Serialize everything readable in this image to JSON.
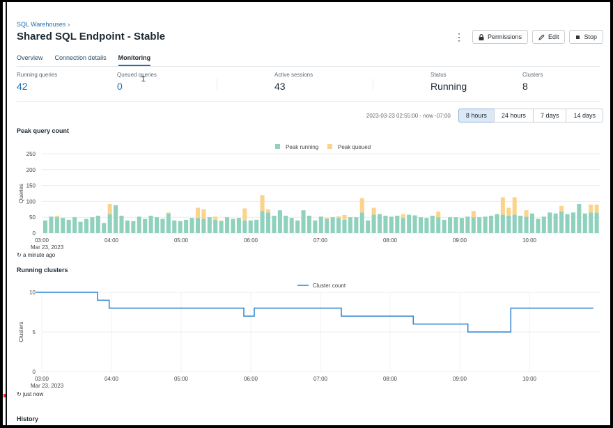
{
  "breadcrumb": {
    "label": "SQL Warehouses"
  },
  "header": {
    "title": "Shared SQL Endpoint - Stable",
    "permissions_label": "Permissions",
    "edit_label": "Edit",
    "stop_label": "Stop"
  },
  "tabs": [
    {
      "label": "Overview"
    },
    {
      "label": "Connection details"
    },
    {
      "label": "Monitoring"
    }
  ],
  "metrics": [
    {
      "label": "Running queries",
      "value": "42"
    },
    {
      "label": "Queued queries",
      "value": "0"
    },
    {
      "label": "Active sessions",
      "value": "43"
    },
    {
      "label": "Status",
      "value": "Running"
    },
    {
      "label": "Clusters",
      "value": "8"
    }
  ],
  "time_range": {
    "range_text": "2023-03-23 02:55:00 - now -07:00",
    "options": [
      "8 hours",
      "24 hours",
      "7 days",
      "14 days"
    ],
    "selected": "8 hours"
  },
  "colors": {
    "accent": "#1f6fb0",
    "peak_running": "#8fd1bd",
    "peak_queued": "#fad48c",
    "cluster_line": "#2b83d0"
  },
  "chart_data": [
    {
      "type": "bar",
      "stacked": true,
      "title": "Peak query count",
      "ylabel": "Queries",
      "ylim": [
        0,
        250
      ],
      "yticks": [
        0,
        50,
        100,
        150,
        200,
        250
      ],
      "xticks": [
        "03:00",
        "04:00",
        "05:00",
        "06:00",
        "07:00",
        "08:00",
        "09:00",
        "10:00"
      ],
      "xsublabel": "Mar 23, 2023",
      "legend": "top-center",
      "series": [
        {
          "name": "Peak running",
          "values": [
            40,
            52,
            50,
            48,
            42,
            50,
            36,
            45,
            50,
            55,
            32,
            60,
            88,
            55,
            40,
            38,
            52,
            45,
            55,
            50,
            45,
            62,
            40,
            38,
            42,
            48,
            48,
            45,
            50,
            42,
            38,
            50,
            45,
            48,
            40,
            40,
            42,
            70,
            65,
            55,
            72,
            55,
            48,
            40,
            72,
            55,
            40,
            52,
            45,
            50,
            48,
            42,
            50,
            50,
            65,
            40,
            58,
            60,
            55,
            52,
            55,
            48,
            58,
            56,
            50,
            48,
            55,
            50,
            42,
            50,
            50,
            48,
            52,
            50,
            50,
            52,
            55,
            60,
            58,
            55,
            58,
            55,
            52,
            62,
            45,
            52,
            65,
            62,
            68,
            60,
            65,
            92,
            62,
            65,
            65
          ]
        },
        {
          "name": "Peak queued",
          "values": [
            0,
            0,
            5,
            0,
            0,
            0,
            0,
            0,
            0,
            0,
            0,
            32,
            0,
            0,
            0,
            0,
            0,
            0,
            0,
            0,
            0,
            3,
            0,
            0,
            0,
            0,
            32,
            30,
            0,
            10,
            2,
            0,
            0,
            0,
            38,
            0,
            0,
            50,
            10,
            0,
            0,
            0,
            0,
            0,
            0,
            0,
            0,
            0,
            3,
            0,
            5,
            15,
            0,
            0,
            45,
            0,
            22,
            0,
            0,
            0,
            0,
            12,
            0,
            0,
            0,
            0,
            0,
            18,
            0,
            0,
            0,
            0,
            0,
            20,
            0,
            0,
            0,
            0,
            55,
            25,
            55,
            0,
            20,
            0,
            0,
            0,
            0,
            0,
            18,
            0,
            0,
            0,
            0,
            25,
            25
          ]
        }
      ]
    },
    {
      "type": "line",
      "step": true,
      "title": "Running clusters",
      "ylabel": "Clusters",
      "ylim": [
        0,
        10
      ],
      "yticks": [
        0,
        5,
        10
      ],
      "xticks": [
        "03:00",
        "04:00",
        "05:00",
        "06:00",
        "07:00",
        "08:00",
        "09:00",
        "10:00"
      ],
      "xsublabel": "Mar 23, 2023",
      "legend": "top-center",
      "series": [
        {
          "name": "Cluster count",
          "x": [
            "02:55",
            "03:48",
            "03:58",
            "05:54",
            "06:03",
            "07:18",
            "08:20",
            "09:07",
            "09:44",
            "10:55"
          ],
          "values": [
            10,
            9,
            8,
            7,
            8,
            7,
            6,
            5,
            8,
            8
          ]
        }
      ]
    }
  ],
  "peak_updated": "a minute ago",
  "clusters_updated": "just now",
  "history_label": "History"
}
